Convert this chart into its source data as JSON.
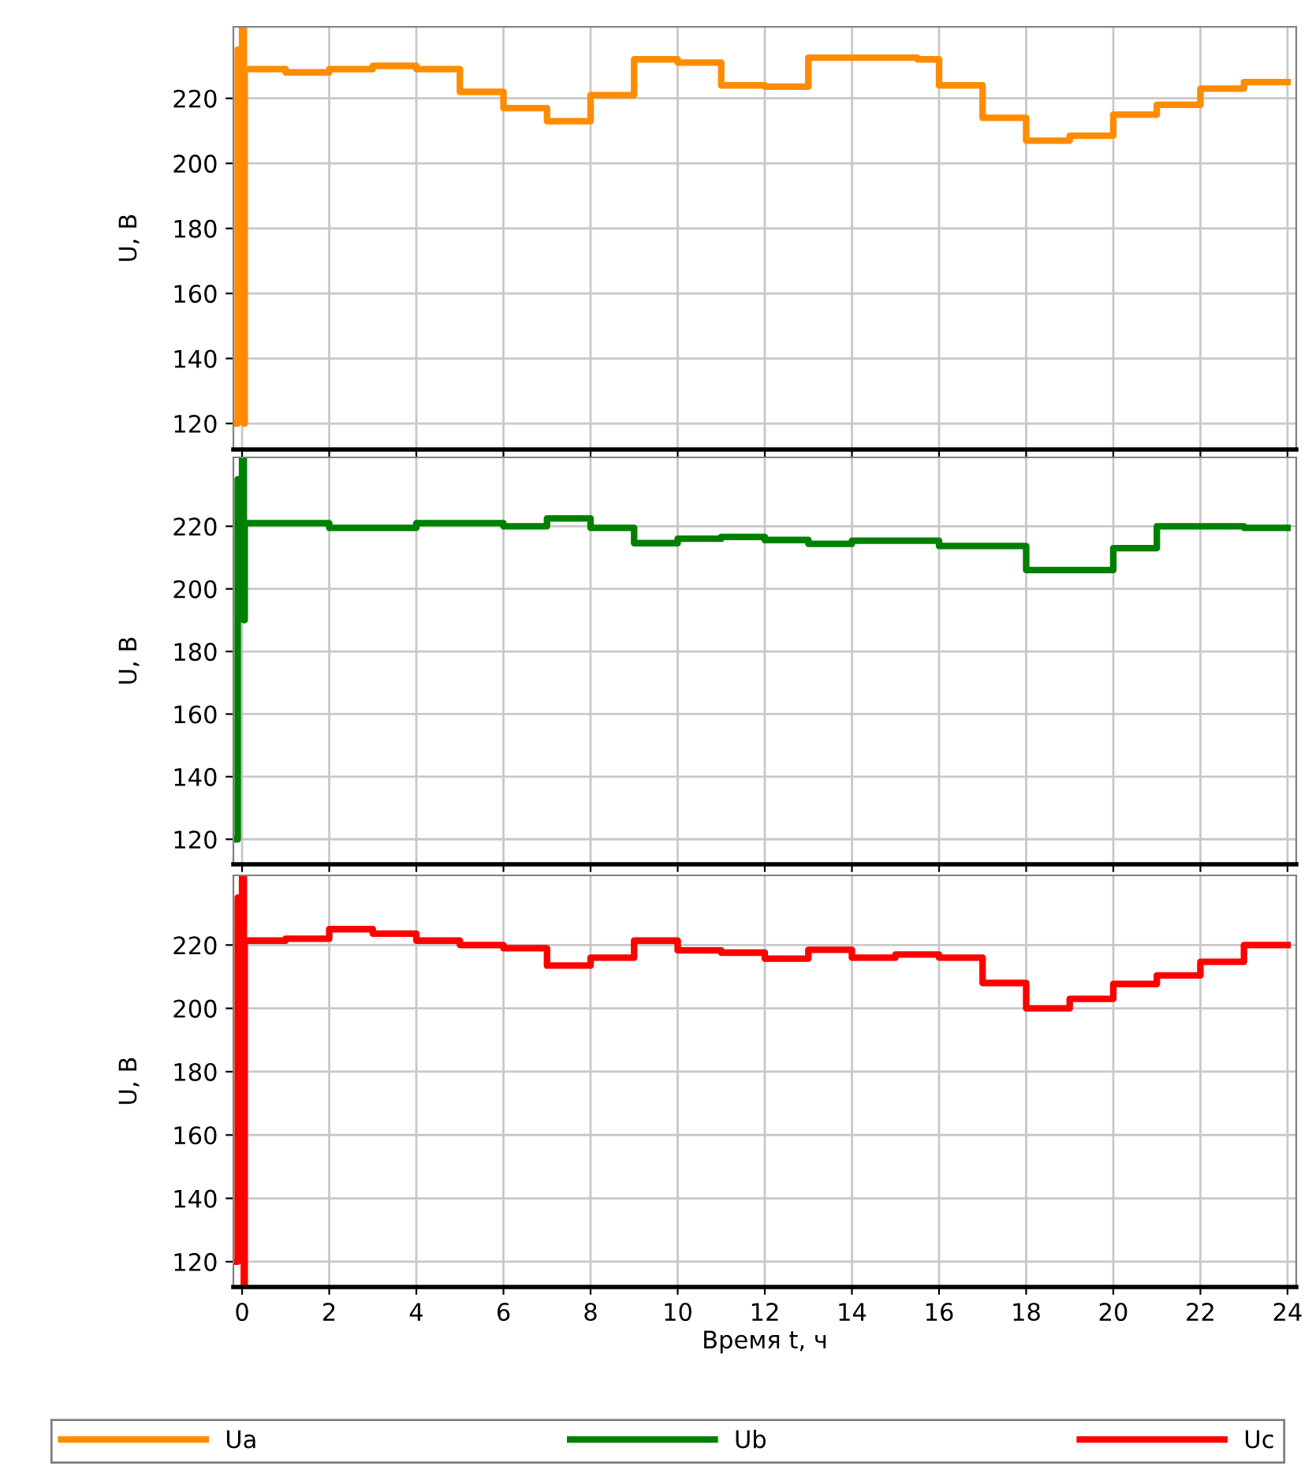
{
  "chart_data": [
    {
      "type": "step",
      "ylabel": "U, B",
      "xlim": [
        -0.2,
        24.2
      ],
      "ylim": [
        112,
        242
      ],
      "xticks": [
        0,
        2,
        4,
        6,
        8,
        10,
        12,
        14,
        16,
        18,
        20,
        22,
        24
      ],
      "yticks": [
        120,
        140,
        160,
        180,
        200,
        220
      ],
      "grid": true,
      "tick_labels": "y",
      "series": [
        {
          "name": "Ua",
          "color": "#ff8c00",
          "x": [
            -0.15,
            -0.1,
            0,
            0.04,
            0.06,
            1,
            2,
            3,
            4,
            5,
            6,
            7,
            8,
            9,
            10,
            11,
            12,
            13,
            15.5,
            16,
            17,
            18,
            19,
            20,
            21,
            22,
            23,
            24
          ],
          "values": [
            120,
            235,
            242,
            120,
            229,
            228,
            229,
            230,
            229,
            222,
            217,
            213,
            221,
            232,
            231,
            224,
            223.6,
            232.5,
            232,
            224,
            214,
            207,
            208.5,
            215,
            218,
            223,
            225,
            225
          ]
        }
      ]
    },
    {
      "type": "step",
      "ylabel": "U, B",
      "xlim": [
        -0.2,
        24.2
      ],
      "ylim": [
        112,
        242
      ],
      "xticks": [
        0,
        2,
        4,
        6,
        8,
        10,
        12,
        14,
        16,
        18,
        20,
        22,
        24
      ],
      "yticks": [
        120,
        140,
        160,
        180,
        200,
        220
      ],
      "grid": true,
      "tick_labels": "y",
      "series": [
        {
          "name": "Ub",
          "color": "#008000",
          "x": [
            -0.15,
            -0.1,
            0,
            0.04,
            0.06,
            2,
            4,
            6,
            7,
            8,
            9,
            10,
            11,
            12,
            13,
            14,
            16,
            18,
            20,
            21,
            23,
            24
          ],
          "values": [
            120,
            235,
            242,
            190,
            221,
            219.5,
            221,
            220,
            222.5,
            219.5,
            214.6,
            216,
            216.6,
            215.6,
            214.4,
            215.4,
            213.7,
            206,
            213,
            220,
            219.5,
            219.5
          ]
        }
      ]
    },
    {
      "type": "step",
      "ylabel": "U, B",
      "xlabel": "Время t, ч",
      "xlim": [
        -0.2,
        24.2
      ],
      "ylim": [
        112,
        242
      ],
      "xticks": [
        0,
        2,
        4,
        6,
        8,
        10,
        12,
        14,
        16,
        18,
        20,
        22,
        24
      ],
      "yticks": [
        120,
        140,
        160,
        180,
        200,
        220
      ],
      "grid": true,
      "legend": "bottom",
      "series": [
        {
          "name": "Uc",
          "color": "#ff0000",
          "x": [
            -0.15,
            -0.1,
            0,
            0.04,
            0.06,
            1,
            2,
            3,
            4,
            5,
            6,
            7,
            8,
            9,
            10,
            11,
            12,
            13,
            14,
            15,
            16,
            17,
            18,
            19,
            20,
            21,
            22,
            23,
            24
          ],
          "values": [
            120,
            235,
            242,
            112,
            221.4,
            222,
            225,
            223.6,
            221.4,
            220,
            219,
            213.5,
            216,
            221.4,
            218.3,
            217.6,
            215.7,
            218.5,
            216,
            217,
            216,
            208,
            200,
            203,
            207.7,
            210.4,
            214.7,
            220,
            220
          ]
        }
      ]
    }
  ]
}
